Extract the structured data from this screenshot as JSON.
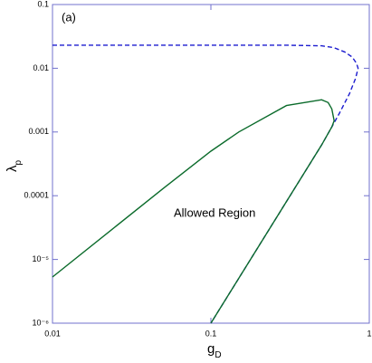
{
  "chart_data": {
    "type": "line",
    "annotations": [
      "(a)",
      "Allowed Region"
    ],
    "xlabel": {
      "main": "g",
      "sub": "D"
    },
    "ylabel": {
      "main": "λ",
      "sub": "p"
    },
    "xlog": true,
    "ylog": true,
    "xlim": [
      0.01,
      1
    ],
    "ylim": [
      1e-06,
      0.1
    ],
    "xticks": [
      0.01,
      0.1,
      1
    ],
    "yticks": [
      {
        "value": 1e-06,
        "label": "10⁻⁶"
      },
      {
        "value": 1e-05,
        "label": "10⁻⁵"
      },
      0.0001,
      0.001,
      0.01,
      0.1
    ],
    "series": [
      {
        "color": "#1c1ccf",
        "dashed": true,
        "x": [
          0.01,
          0.3,
          0.5,
          0.6,
          0.7,
          0.78,
          0.83,
          0.85,
          0.82,
          0.75,
          0.65,
          0.58,
          0.5,
          0.3,
          0.2,
          0.1
        ],
        "values": [
          0.023,
          0.023,
          0.0225,
          0.021,
          0.018,
          0.015,
          0.012,
          0.01,
          0.007,
          0.004,
          0.002,
          0.0012,
          0.000625,
          8.1e-05,
          1.6e-05,
          1e-06
        ]
      },
      {
        "color": "#0b6b2b",
        "dashed": false,
        "x": [
          0.01,
          0.05,
          0.1,
          0.15,
          0.3,
          0.5,
          0.55,
          0.58,
          0.6,
          0.58,
          0.5,
          0.3,
          0.2,
          0.1
        ],
        "values": [
          5.3e-06,
          0.00013,
          0.0005,
          0.001,
          0.0026,
          0.0032,
          0.0029,
          0.0023,
          0.0015,
          0.0012,
          0.000625,
          8.1e-05,
          1.6e-05,
          1e-06
        ]
      }
    ]
  }
}
